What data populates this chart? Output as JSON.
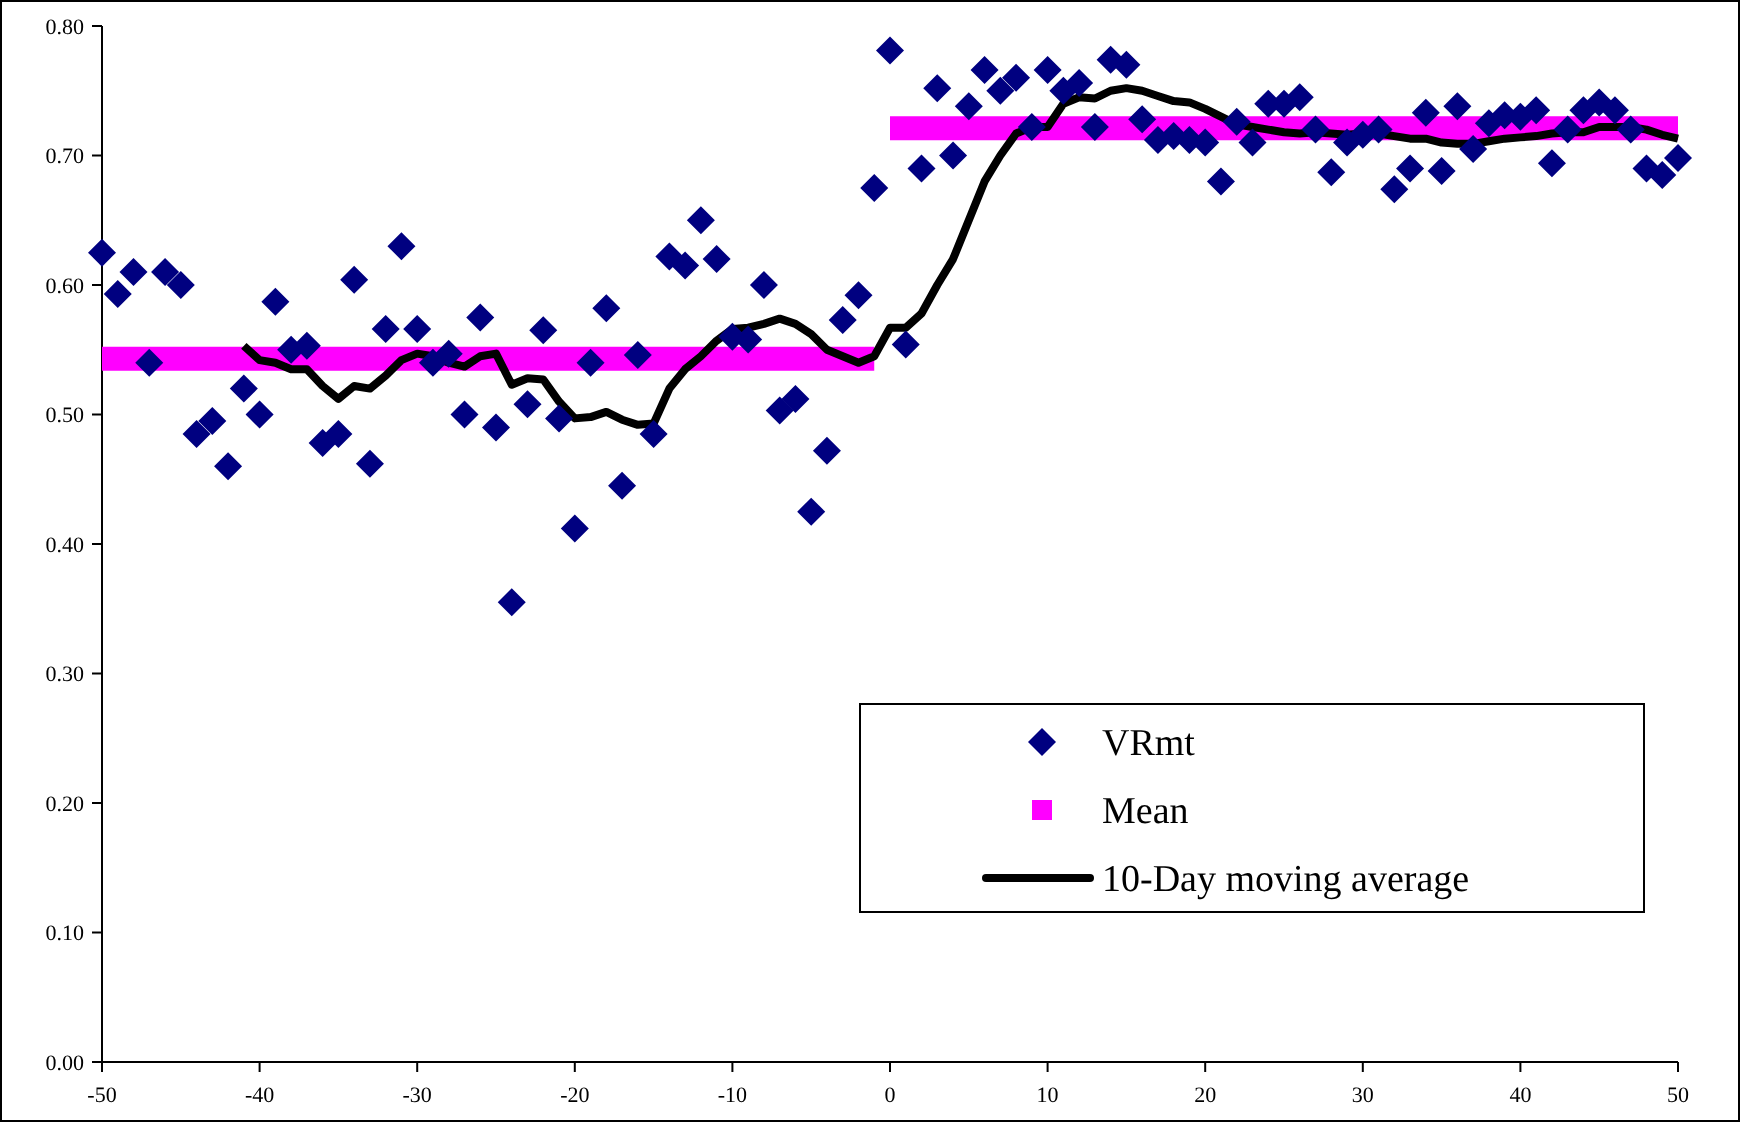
{
  "chart_data": {
    "type": "scatter",
    "xlim": [
      -50,
      50
    ],
    "xticks": [
      -50,
      -40,
      -30,
      -20,
      -10,
      0,
      10,
      20,
      30,
      40,
      50
    ],
    "ylim": [
      0,
      0.8
    ],
    "yticks": [
      {
        "value": 0,
        "label": "0.00"
      },
      {
        "value": 0.1,
        "label": "0.10"
      },
      {
        "value": 0.2,
        "label": "0.20"
      },
      {
        "value": 0.3,
        "label": "0.30"
      },
      {
        "value": 0.4,
        "label": "0.40"
      },
      {
        "value": 0.5,
        "label": "0.50"
      },
      {
        "value": 0.6,
        "label": "0.60"
      },
      {
        "value": 0.7,
        "label": "0.70"
      },
      {
        "value": 0.8,
        "label": "0.80"
      }
    ],
    "grid": false,
    "legend": "bottom right",
    "series": [
      {
        "name": "VRmt",
        "marker": "diamond",
        "color": "#000080",
        "x": [
          -50,
          -49,
          -48,
          -47,
          -46,
          -45,
          -44,
          -43,
          -42,
          -41,
          -40,
          -39,
          -38,
          -37,
          -36,
          -35,
          -34,
          -33,
          -32,
          -31,
          -30,
          -29,
          -28,
          -27,
          -26,
          -25,
          -24,
          -23,
          -22,
          -21,
          -20,
          -19,
          -18,
          -17,
          -16,
          -15,
          -14,
          -13,
          -12,
          -11,
          -10,
          -9,
          -8,
          -7,
          -6,
          -5,
          -4,
          -3,
          -2,
          -1,
          0,
          1,
          2,
          3,
          4,
          5,
          6,
          7,
          8,
          9,
          10,
          11,
          12,
          13,
          14,
          15,
          16,
          17,
          18,
          19,
          20,
          21,
          22,
          23,
          24,
          25,
          26,
          27,
          28,
          29,
          30,
          31,
          32,
          33,
          34,
          35,
          36,
          37,
          38,
          39,
          40,
          41,
          42,
          43,
          44,
          45,
          46,
          47,
          48,
          49,
          50
        ],
        "values": [
          0.625,
          0.593,
          0.61,
          0.54,
          0.61,
          0.6,
          0.485,
          0.495,
          0.46,
          0.52,
          0.5,
          0.587,
          0.55,
          0.553,
          0.478,
          0.485,
          0.604,
          0.462,
          0.566,
          0.63,
          0.566,
          0.54,
          0.547,
          0.5,
          0.575,
          0.49,
          0.355,
          0.508,
          0.565,
          0.497,
          0.412,
          0.54,
          0.582,
          0.445,
          0.546,
          0.485,
          0.622,
          0.615,
          0.65,
          0.62,
          0.56,
          0.558,
          0.6,
          0.503,
          0.512,
          0.425,
          0.472,
          0.573,
          0.592,
          0.675,
          0.781,
          0.554,
          0.69,
          0.752,
          0.7,
          0.738,
          0.766,
          0.75,
          0.76,
          0.722,
          0.766,
          0.75,
          0.756,
          0.722,
          0.774,
          0.77,
          0.728,
          0.712,
          0.715,
          0.712,
          0.71,
          0.68,
          0.726,
          0.71,
          0.74,
          0.74,
          0.745,
          0.72,
          0.687,
          0.71,
          0.716,
          0.72,
          0.674,
          0.69,
          0.733,
          0.688,
          0.738,
          0.705,
          0.725,
          0.731,
          0.73,
          0.735,
          0.694,
          0.72,
          0.735,
          0.741,
          0.735,
          0.72,
          0.69,
          0.685,
          0.698
        ]
      },
      {
        "name": "Mean",
        "type": "line",
        "marker": "none",
        "line_style": "solid",
        "color": "#ff00ff",
        "x": [
          -50,
          -1,
          -0.5,
          0,
          50
        ],
        "values": [
          0.543,
          0.543,
          null,
          0.721,
          0.721
        ]
      },
      {
        "name": "10-Day moving average",
        "type": "line",
        "marker": "none",
        "line_style": "solid",
        "color": "#000000",
        "x": [
          -41,
          -40,
          -39,
          -38,
          -37,
          -36,
          -35,
          -34,
          -33,
          -32,
          -31,
          -30,
          -29,
          -28,
          -27,
          -26,
          -25,
          -24,
          -23,
          -22,
          -21,
          -20,
          -19,
          -18,
          -17,
          -16,
          -15,
          -14,
          -13,
          -12,
          -11,
          -10,
          -9,
          -8,
          -7,
          -6,
          -5,
          -4,
          -3,
          -2,
          -1,
          0,
          1,
          2,
          3,
          4,
          5,
          6,
          7,
          8,
          9,
          10,
          11,
          12,
          13,
          14,
          15,
          16,
          17,
          18,
          19,
          20,
          21,
          22,
          23,
          24,
          25,
          26,
          27,
          28,
          29,
          30,
          31,
          32,
          33,
          34,
          35,
          36,
          37,
          38,
          39,
          40,
          41,
          42,
          43,
          44,
          45,
          46,
          47,
          48,
          49,
          50
        ],
        "values": [
          0.553,
          0.542,
          0.54,
          0.535,
          0.535,
          0.522,
          0.512,
          0.522,
          0.52,
          0.53,
          0.542,
          0.547,
          0.545,
          0.54,
          0.537,
          0.545,
          0.547,
          0.523,
          0.528,
          0.527,
          0.51,
          0.497,
          0.498,
          0.502,
          0.496,
          0.492,
          0.493,
          0.52,
          0.535,
          0.545,
          0.557,
          0.566,
          0.567,
          0.57,
          0.574,
          0.57,
          0.562,
          0.55,
          0.545,
          0.54,
          0.545,
          0.567,
          0.567,
          0.578,
          0.6,
          0.62,
          0.65,
          0.68,
          0.7,
          0.717,
          0.722,
          0.722,
          0.74,
          0.745,
          0.744,
          0.75,
          0.752,
          0.75,
          0.746,
          0.742,
          0.741,
          0.736,
          0.73,
          0.724,
          0.722,
          0.72,
          0.718,
          0.717,
          0.718,
          0.717,
          0.716,
          0.717,
          0.717,
          0.715,
          0.713,
          0.713,
          0.71,
          0.709,
          0.709,
          0.711,
          0.713,
          0.714,
          0.715,
          0.717,
          0.718,
          0.718,
          0.722,
          0.722,
          0.722,
          0.72,
          0.716,
          0.713
        ]
      }
    ]
  }
}
